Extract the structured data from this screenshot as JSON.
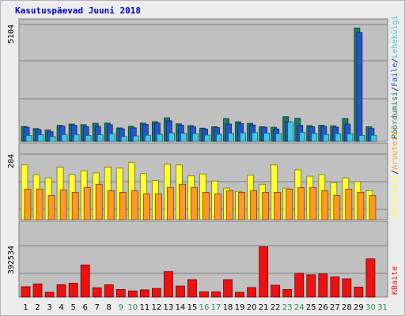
{
  "title": "Kasutuspäevad Juuni 2018",
  "colors": {
    "weekday_label": "#000000",
    "weekend_label": "#2a8a5a",
    "panel_bg": "#c0c0c0",
    "visits": "#1a7a60",
    "pages": "#2255cc",
    "files": "#3ec8e8",
    "hits": "#ffff33",
    "unique": "#ff9922",
    "kbytes": "#ee1111"
  },
  "chart_data": [
    {
      "type": "bar",
      "categories": [
        "1",
        "2",
        "3",
        "4",
        "5",
        "6",
        "7",
        "8",
        "9",
        "10",
        "11",
        "12",
        "13",
        "14",
        "15",
        "16",
        "17",
        "18",
        "19",
        "20",
        "21",
        "22",
        "23",
        "24",
        "25",
        "26",
        "27",
        "28",
        "29",
        "30",
        "31"
      ],
      "weekend_days": [
        "9",
        "10",
        "16",
        "17",
        "23",
        "24",
        "30",
        "31"
      ],
      "ytick_label": "5104",
      "right_labels": [
        {
          "text": "Pöördumisi",
          "color_key": "visits"
        },
        {
          "text": "/",
          "color_key": "weekday_label"
        },
        {
          "text": "Faile",
          "color_key": "pages"
        },
        {
          "text": "/",
          "color_key": "weekday_label"
        },
        {
          "text": "Lehekülgi",
          "color_key": "files"
        }
      ],
      "ymax": 5104,
      "series": [
        {
          "color_key": "visits",
          "values": [
            650,
            560,
            500,
            700,
            760,
            730,
            790,
            800,
            590,
            660,
            800,
            860,
            1030,
            770,
            690,
            580,
            640,
            1000,
            860,
            790,
            640,
            620,
            1080,
            1010,
            690,
            700,
            680,
            1000,
            4950,
            640,
            null
          ]
        },
        {
          "color_key": "pages",
          "values": [
            620,
            520,
            420,
            670,
            700,
            640,
            660,
            730,
            550,
            590,
            740,
            800,
            900,
            700,
            640,
            540,
            600,
            760,
            780,
            720,
            620,
            540,
            860,
            700,
            640,
            660,
            620,
            760,
            4750,
            560,
            null
          ]
        },
        {
          "color_key": "files",
          "values": [
            260,
            290,
            210,
            300,
            300,
            260,
            290,
            330,
            210,
            240,
            270,
            310,
            370,
            360,
            340,
            280,
            310,
            350,
            370,
            380,
            360,
            330,
            850,
            390,
            350,
            300,
            330,
            330,
            260,
            270,
            null
          ]
        }
      ]
    },
    {
      "type": "bar",
      "categories": [
        "1",
        "2",
        "3",
        "4",
        "5",
        "6",
        "7",
        "8",
        "9",
        "10",
        "11",
        "12",
        "13",
        "14",
        "15",
        "16",
        "17",
        "18",
        "19",
        "20",
        "21",
        "22",
        "23",
        "24",
        "25",
        "26",
        "27",
        "28",
        "29",
        "30",
        "31"
      ],
      "ytick_label": "204",
      "right_labels": [
        {
          "text": "Külastusi",
          "color_key": "hits"
        },
        {
          "text": "/",
          "color_key": "weekday_label"
        },
        {
          "text": "Arvuteid",
          "color_key": "unique"
        }
      ],
      "ymax": 204,
      "series": [
        {
          "color_key": "hits",
          "values": [
            170,
            140,
            130,
            163,
            140,
            152,
            145,
            163,
            160,
            178,
            143,
            122,
            172,
            170,
            136,
            142,
            120,
            98,
            88,
            138,
            110,
            170,
            98,
            155,
            135,
            140,
            115,
            130,
            118,
            90,
            null
          ]
        },
        {
          "color_key": "unique",
          "values": [
            95,
            95,
            75,
            92,
            85,
            100,
            110,
            90,
            85,
            90,
            80,
            80,
            100,
            110,
            100,
            85,
            80,
            90,
            85,
            90,
            85,
            85,
            95,
            100,
            100,
            90,
            75,
            95,
            85,
            75,
            null
          ]
        }
      ]
    },
    {
      "type": "bar",
      "categories": [
        "1",
        "2",
        "3",
        "4",
        "5",
        "6",
        "7",
        "8",
        "9",
        "10",
        "11",
        "12",
        "13",
        "14",
        "15",
        "16",
        "17",
        "18",
        "19",
        "20",
        "21",
        "22",
        "23",
        "24",
        "25",
        "26",
        "27",
        "28",
        "29",
        "30",
        "31"
      ],
      "ytick_label": "392534",
      "right_labels": [
        {
          "text": "KBaite",
          "color_key": "kbytes"
        }
      ],
      "ymax": 392534,
      "series": [
        {
          "color_key": "kbytes",
          "values": [
            79000,
            100000,
            36000,
            95000,
            106000,
            245000,
            71000,
            94000,
            58000,
            47000,
            55000,
            66000,
            195000,
            84000,
            133000,
            40000,
            40000,
            133000,
            36000,
            73000,
            385000,
            91000,
            58000,
            181000,
            170000,
            177000,
            154000,
            139000,
            76000,
            292000,
            null
          ]
        }
      ]
    }
  ]
}
